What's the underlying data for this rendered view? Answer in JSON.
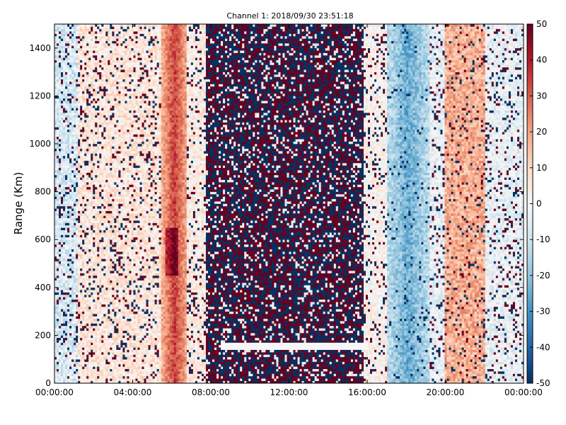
{
  "chart_data": {
    "type": "heatmap",
    "title": "Channel 1: 2018/09/30 23:51:18",
    "xlabel": "",
    "ylabel": "Range (Km)",
    "x_ticks": [
      "00:00:00",
      "04:00:00",
      "08:00:00",
      "12:00:00",
      "16:00:00",
      "20:00:00",
      "00:00:00"
    ],
    "x_range_hours": [
      0,
      24
    ],
    "y_ticks": [
      0,
      200,
      400,
      600,
      800,
      1000,
      1200,
      1400
    ],
    "ylim": [
      0,
      1500
    ],
    "colorbar": {
      "ticks": [
        50,
        40,
        30,
        20,
        10,
        0,
        -10,
        -20,
        -30,
        -40,
        -50
      ],
      "range": [
        -50,
        50
      ],
      "colormap": "RdBu_r",
      "color_high": "#67001f",
      "color_mid": "#f7f7f7",
      "color_low": "#053061"
    },
    "features": [
      {
        "description": "strong positive band",
        "x_hours": [
          5.5,
          6.8
        ],
        "value": 35
      },
      {
        "description": "noisy mixed region",
        "x_hours": [
          7.7,
          15.8
        ],
        "value": "±50"
      },
      {
        "description": "negative band",
        "x_hours": [
          17.0,
          19.2
        ],
        "value": -25
      },
      {
        "description": "positive band",
        "x_hours": [
          20.0,
          22.0
        ],
        "value": 18
      }
    ],
    "grid": false
  }
}
